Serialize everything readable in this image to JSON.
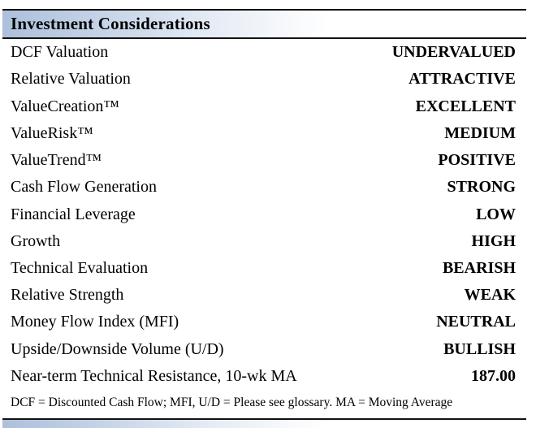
{
  "header": {
    "title": "Investment Considerations"
  },
  "rows": [
    {
      "label": "DCF Valuation",
      "value": "UNDERVALUED"
    },
    {
      "label": "Relative Valuation",
      "value": "ATTRACTIVE"
    },
    {
      "label": "ValueCreation™",
      "value": "EXCELLENT"
    },
    {
      "label": "ValueRisk™",
      "value": "MEDIUM"
    },
    {
      "label": "ValueTrend™",
      "value": "POSITIVE"
    },
    {
      "label": "Cash Flow Generation",
      "value": "STRONG"
    },
    {
      "label": "Financial Leverage",
      "value": "LOW"
    },
    {
      "label": "Growth",
      "value": "HIGH"
    },
    {
      "label": "Technical Evaluation",
      "value": "BEARISH"
    },
    {
      "label": "Relative Strength",
      "value": "WEAK"
    },
    {
      "label": "Money Flow Index (MFI)",
      "value": "NEUTRAL"
    },
    {
      "label": "Upside/Downside Volume (U/D)",
      "value": "BULLISH"
    },
    {
      "label": "Near-term Technical Resistance, 10-wk MA",
      "value": "187.00"
    }
  ],
  "footnote": "DCF = Discounted Cash Flow; MFI, U/D = Please see glossary. MA = Moving Average",
  "colors": {
    "band_gradient_start": "#adc0db",
    "band_gradient_end": "#ffffff",
    "rule": "#121212",
    "text": "#000000"
  }
}
